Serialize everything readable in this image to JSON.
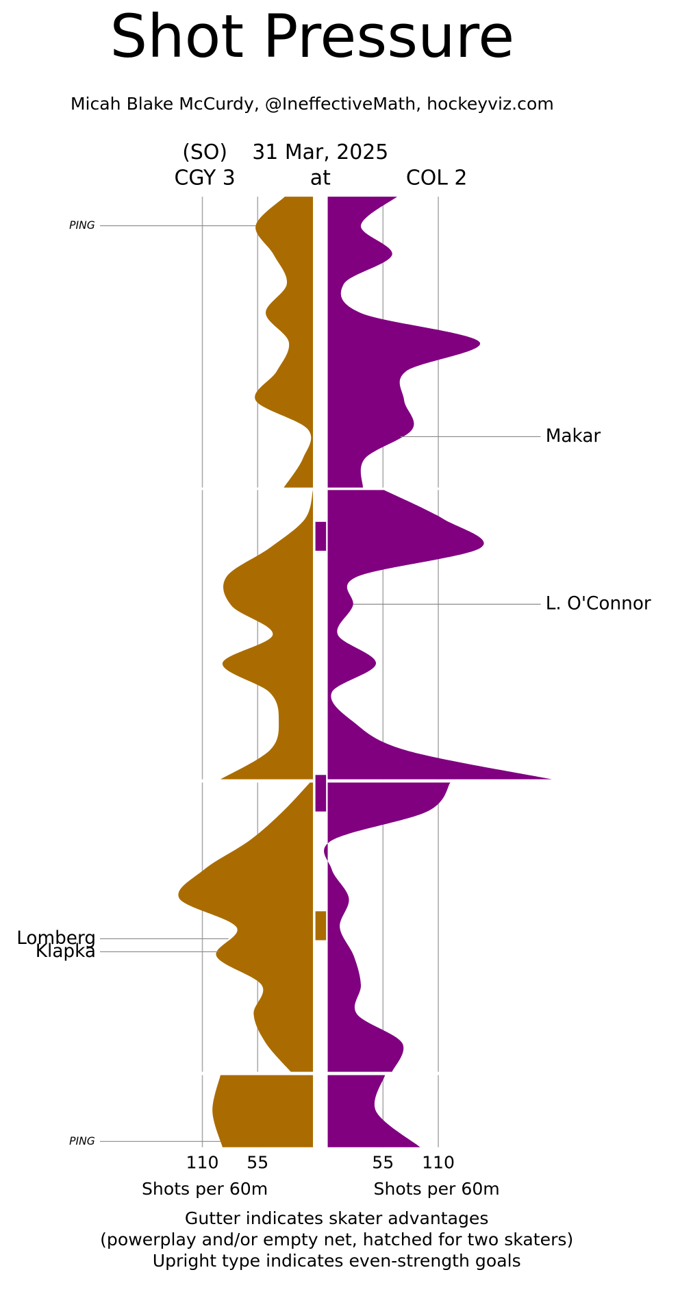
{
  "chart_data": {
    "type": "shot-pressure",
    "title": "Shot Pressure",
    "subtitle": "Micah Blake McCurdy, @IneffectiveMath, hockeyviz.com",
    "result": "(SO)",
    "date": "31 Mar, 2025",
    "away": "CGY 3",
    "at": "at",
    "home": "COL 2",
    "xlabel": "Shots per 60m",
    "xlim": [
      0,
      110
    ],
    "xticks": [
      55,
      110
    ],
    "periods": [
      {
        "x": [
          0,
          2,
          4,
          6,
          8,
          10,
          12,
          14,
          16,
          18,
          20
        ],
        "series": [
          {
            "name": "CGY",
            "color": "#aa6c00",
            "values": [
              28,
              57,
              39,
              26,
              47,
              24,
              36,
              57,
              5,
              10,
              29
            ]
          },
          {
            "name": "COL",
            "color": "#800080",
            "values": [
              69,
              33,
              64,
              16,
              33,
              151,
              78,
              76,
              84,
              37,
              35
            ]
          }
        ]
      },
      {
        "x": [
          20,
          22,
          24,
          26,
          28,
          30,
          32,
          34,
          36,
          38,
          40
        ],
        "series": [
          {
            "name": "CGY",
            "color": "#aa6c00",
            "values": [
              0,
              8,
              43,
              86,
              81,
              40,
              90,
              43,
              34,
              43,
              92
            ]
          },
          {
            "name": "COL",
            "color": "#800080",
            "values": [
              56,
              115,
              152,
              29,
              25,
              10,
              48,
              4,
              25,
              78,
              223
            ]
          }
        ]
      },
      {
        "x": [
          40,
          42,
          44,
          46,
          48,
          50,
          52,
          54,
          56,
          58,
          60
        ],
        "series": [
          {
            "name": "CGY",
            "color": "#aa6c00",
            "values": [
              3,
              30,
              63,
              108,
              133,
              76,
              96,
              51,
              59,
              47,
              22
            ]
          },
          {
            "name": "COL",
            "color": "#800080",
            "values": [
              122,
              99,
              4,
              4,
              21,
              12,
              26,
              33,
              29,
              74,
              64
            ]
          }
        ]
      },
      {
        "x": [
          60,
          62.5,
          65
        ],
        "series": [
          {
            "name": "CGY",
            "color": "#aa6c00",
            "values": [
              92,
              100,
              90
            ]
          },
          {
            "name": "COL",
            "color": "#800080",
            "values": [
              57,
              48,
              92
            ]
          }
        ]
      }
    ],
    "gutter": [
      {
        "start": 22.2,
        "end": 24.2,
        "color": "#800080"
      },
      {
        "start": 39.7,
        "end": 42,
        "color": "#800080"
      },
      {
        "start": 48.9,
        "end": 50.9,
        "color": "#aa6c00"
      }
    ],
    "annotations": [
      {
        "label": "PING",
        "minute": 2,
        "side": "left",
        "style": "italic"
      },
      {
        "label": "Makar",
        "minute": 16.5,
        "side": "right",
        "style": "normal"
      },
      {
        "label": "L. O'Connor",
        "minute": 27.9,
        "side": "right",
        "style": "normal"
      },
      {
        "label": "Lomberg",
        "minute": 50.8,
        "side": "left",
        "style": "normal"
      },
      {
        "label": "Klapka",
        "minute": 51.7,
        "side": "left",
        "style": "normal"
      },
      {
        "label": "PING",
        "minute": 64.6,
        "side": "left",
        "style": "italic"
      }
    ],
    "footnote": [
      "Gutter indicates skater advantages",
      "(powerplay and/or empty net, hatched for two skaters)",
      "Upright type indicates even-strength goals"
    ]
  }
}
